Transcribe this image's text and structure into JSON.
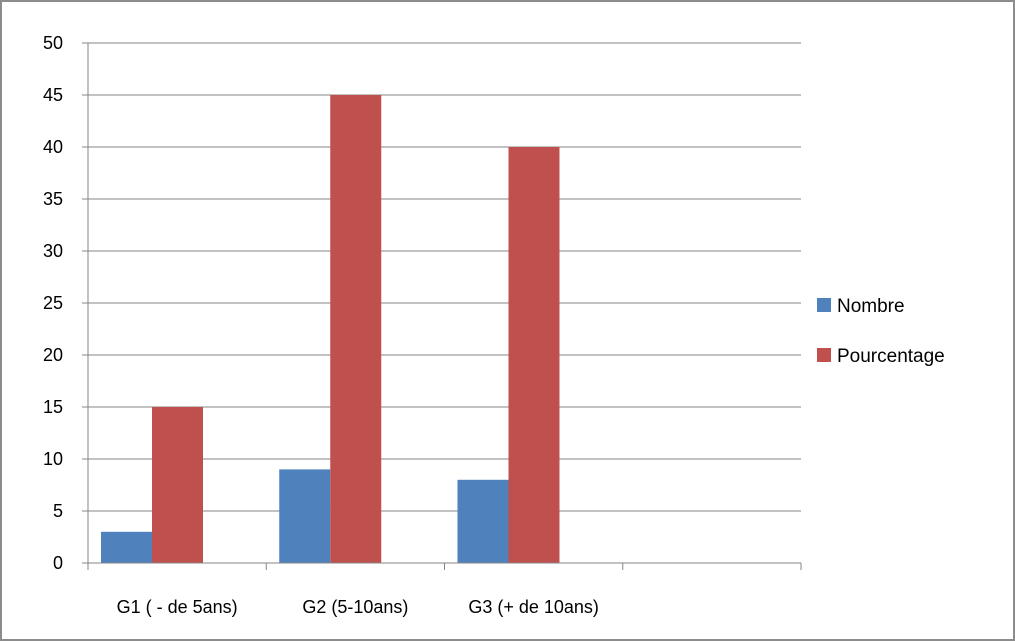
{
  "chart_data": {
    "type": "bar",
    "categories": [
      "G1 ( - de 5ans)",
      "G2 (5-10ans)",
      "G3 (+ de 10ans)",
      ""
    ],
    "series": [
      {
        "name": "Nombre",
        "values": [
          3,
          9,
          8,
          null
        ],
        "color": "#4f81bd"
      },
      {
        "name": "Pourcentage",
        "values": [
          15,
          45,
          40,
          null
        ],
        "color": "#c0504d"
      }
    ],
    "title": "",
    "xlabel": "",
    "ylabel": "",
    "ylim": [
      0,
      50
    ],
    "yticks": [
      0,
      5,
      10,
      15,
      20,
      25,
      30,
      35,
      40,
      45,
      50
    ],
    "grid": true,
    "legend_position": "right",
    "gridline_color": "#868686"
  }
}
